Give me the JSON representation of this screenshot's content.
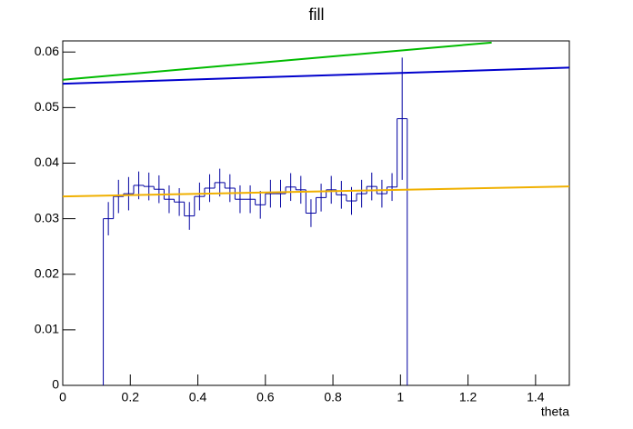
{
  "chart_data": {
    "type": "histogram",
    "title": "fill",
    "x_label": "theta",
    "bins": [
      0.12,
      0.15,
      0.18,
      0.21,
      0.24,
      0.27,
      0.3,
      0.33,
      0.36,
      0.39,
      0.42,
      0.45,
      0.48,
      0.51,
      0.54,
      0.57,
      0.6,
      0.63,
      0.66,
      0.69,
      0.72,
      0.75,
      0.78,
      0.81,
      0.84,
      0.87,
      0.9,
      0.93,
      0.96,
      0.99,
      1.02
    ],
    "values": [
      0.03,
      0.034,
      0.0345,
      0.036,
      0.0358,
      0.0353,
      0.0335,
      0.033,
      0.0305,
      0.034,
      0.0355,
      0.0365,
      0.0355,
      0.0335,
      0.0335,
      0.0325,
      0.0345,
      0.0345,
      0.0357,
      0.0352,
      0.031,
      0.0338,
      0.0352,
      0.0343,
      0.0332,
      0.0345,
      0.0358,
      0.0345,
      0.0357,
      0.048
    ],
    "errors": [
      0.003,
      0.003,
      0.003,
      0.0025,
      0.0025,
      0.0025,
      0.0025,
      0.0025,
      0.0025,
      0.0025,
      0.0025,
      0.0025,
      0.0025,
      0.0025,
      0.0025,
      0.0025,
      0.0025,
      0.0025,
      0.0025,
      0.0025,
      0.0025,
      0.0025,
      0.0025,
      0.0025,
      0.0025,
      0.0025,
      0.0025,
      0.0025,
      0.0025,
      0.011
    ],
    "color": "#0000a0",
    "functions": [
      {
        "color": "#00bb00",
        "x": [
          0,
          1.27
        ],
        "values": [
          0.055,
          0.0617
        ]
      },
      {
        "color": "#0000cc",
        "x": [
          0,
          1.5
        ],
        "values": [
          0.0543,
          0.0572
        ]
      },
      {
        "color": "#f0b000",
        "x": [
          0,
          1.5
        ],
        "values": [
          0.034,
          0.0358
        ]
      }
    ],
    "xlim": [
      0,
      1.5
    ],
    "ylim": [
      0,
      0.062
    ],
    "xticks": [
      0,
      0.2,
      0.4,
      0.6,
      0.8,
      1,
      1.2,
      1.4
    ],
    "yticks": [
      0,
      0.01,
      0.02,
      0.03,
      0.04,
      0.05,
      0.06
    ]
  }
}
